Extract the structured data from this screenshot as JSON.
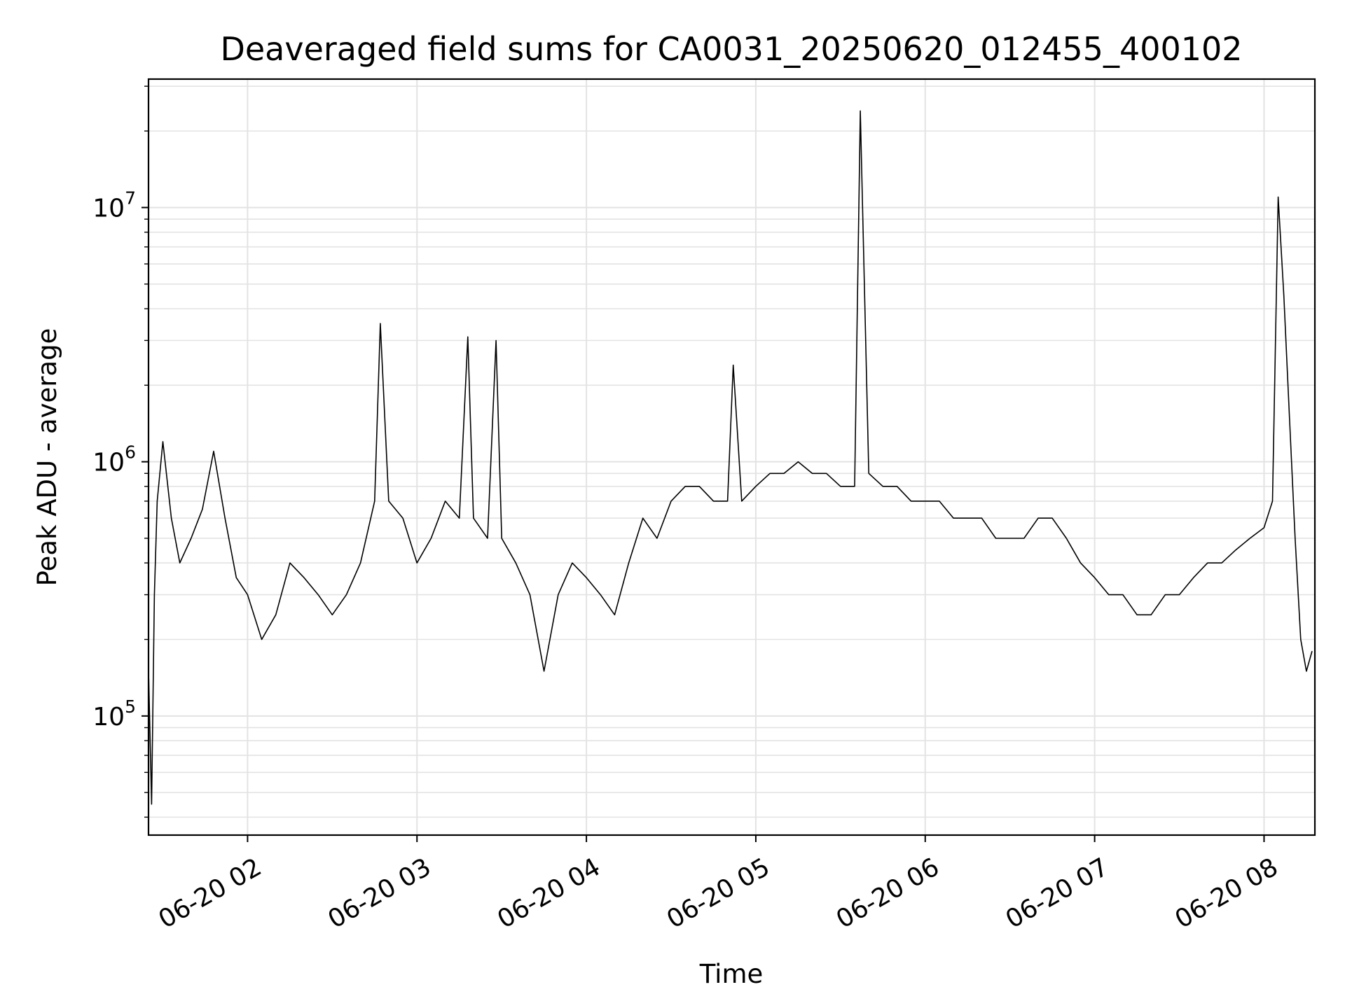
{
  "chart_data": {
    "type": "line",
    "title": "Deaveraged field sums for CA0031_20250620_012455_400102",
    "xlabel": "Time",
    "ylabel": "Peak ADU - average",
    "y_scale": "log",
    "ylim": [
      34000,
      32000000
    ],
    "xlim": [
      "06-20 01:24:55",
      "06-20 08:18:00"
    ],
    "grid": true,
    "x_ticks": [
      {
        "label": "06-20 02",
        "time": "06-20 02:00"
      },
      {
        "label": "06-20 03",
        "time": "06-20 03:00"
      },
      {
        "label": "06-20 04",
        "time": "06-20 04:00"
      },
      {
        "label": "06-20 05",
        "time": "06-20 05:00"
      },
      {
        "label": "06-20 06",
        "time": "06-20 06:00"
      },
      {
        "label": "06-20 07",
        "time": "06-20 07:00"
      },
      {
        "label": "06-20 08",
        "time": "06-20 08:00"
      }
    ],
    "y_ticks": [
      {
        "base": "10",
        "exp": "5",
        "value": 100000
      },
      {
        "base": "10",
        "exp": "6",
        "value": 1000000
      },
      {
        "base": "10",
        "exp": "7",
        "value": 10000000
      }
    ],
    "line_color": "#000000",
    "series": [
      {
        "x": [
          "06-20 01:25",
          "06-20 01:26",
          "06-20 01:27",
          "06-20 01:28",
          "06-20 01:30",
          "06-20 01:33",
          "06-20 01:36",
          "06-20 01:40",
          "06-20 01:44",
          "06-20 01:48",
          "06-20 01:52",
          "06-20 01:56",
          "06-20 02:00",
          "06-20 02:05",
          "06-20 02:10",
          "06-20 02:15",
          "06-20 02:20",
          "06-20 02:25",
          "06-20 02:30",
          "06-20 02:35",
          "06-20 02:40",
          "06-20 02:45",
          "06-20 02:47",
          "06-20 02:50",
          "06-20 02:55",
          "06-20 03:00",
          "06-20 03:05",
          "06-20 03:10",
          "06-20 03:15",
          "06-20 03:18",
          "06-20 03:20",
          "06-20 03:25",
          "06-20 03:28",
          "06-20 03:30",
          "06-20 03:35",
          "06-20 03:40",
          "06-20 03:45",
          "06-20 03:50",
          "06-20 03:55",
          "06-20 04:00",
          "06-20 04:05",
          "06-20 04:10",
          "06-20 04:15",
          "06-20 04:20",
          "06-20 04:25",
          "06-20 04:30",
          "06-20 04:35",
          "06-20 04:40",
          "06-20 04:45",
          "06-20 04:50",
          "06-20 04:52",
          "06-20 04:55",
          "06-20 05:00",
          "06-20 05:05",
          "06-20 05:10",
          "06-20 05:15",
          "06-20 05:20",
          "06-20 05:25",
          "06-20 05:30",
          "06-20 05:35",
          "06-20 05:37",
          "06-20 05:40",
          "06-20 05:45",
          "06-20 05:50",
          "06-20 05:55",
          "06-20 06:00",
          "06-20 06:05",
          "06-20 06:10",
          "06-20 06:15",
          "06-20 06:20",
          "06-20 06:25",
          "06-20 06:30",
          "06-20 06:35",
          "06-20 06:40",
          "06-20 06:45",
          "06-20 06:50",
          "06-20 06:55",
          "06-20 07:00",
          "06-20 07:05",
          "06-20 07:10",
          "06-20 07:15",
          "06-20 07:20",
          "06-20 07:25",
          "06-20 07:30",
          "06-20 07:35",
          "06-20 07:40",
          "06-20 07:45",
          "06-20 07:50",
          "06-20 07:55",
          "06-20 08:00",
          "06-20 08:03",
          "06-20 08:05",
          "06-20 08:07",
          "06-20 08:09",
          "06-20 08:11",
          "06-20 08:13",
          "06-20 08:15",
          "06-20 08:17"
        ],
        "y": [
          140000,
          45000,
          300000,
          700000,
          1200000,
          600000,
          400000,
          500000,
          650000,
          1100000,
          600000,
          350000,
          300000,
          200000,
          250000,
          400000,
          350000,
          300000,
          250000,
          300000,
          400000,
          700000,
          3500000,
          700000,
          600000,
          400000,
          500000,
          700000,
          600000,
          3100000,
          600000,
          500000,
          3000000,
          500000,
          400000,
          300000,
          150000,
          300000,
          400000,
          350000,
          300000,
          250000,
          400000,
          600000,
          500000,
          700000,
          800000,
          800000,
          700000,
          700000,
          2400000,
          700000,
          800000,
          900000,
          900000,
          1000000,
          900000,
          900000,
          800000,
          800000,
          24000000,
          900000,
          800000,
          800000,
          700000,
          700000,
          700000,
          600000,
          600000,
          600000,
          500000,
          500000,
          500000,
          600000,
          600000,
          500000,
          400000,
          350000,
          300000,
          300000,
          250000,
          250000,
          300000,
          300000,
          350000,
          400000,
          400000,
          450000,
          500000,
          550000,
          700000,
          11000000,
          4500000,
          1500000,
          500000,
          200000,
          150000,
          180000
        ]
      }
    ]
  }
}
